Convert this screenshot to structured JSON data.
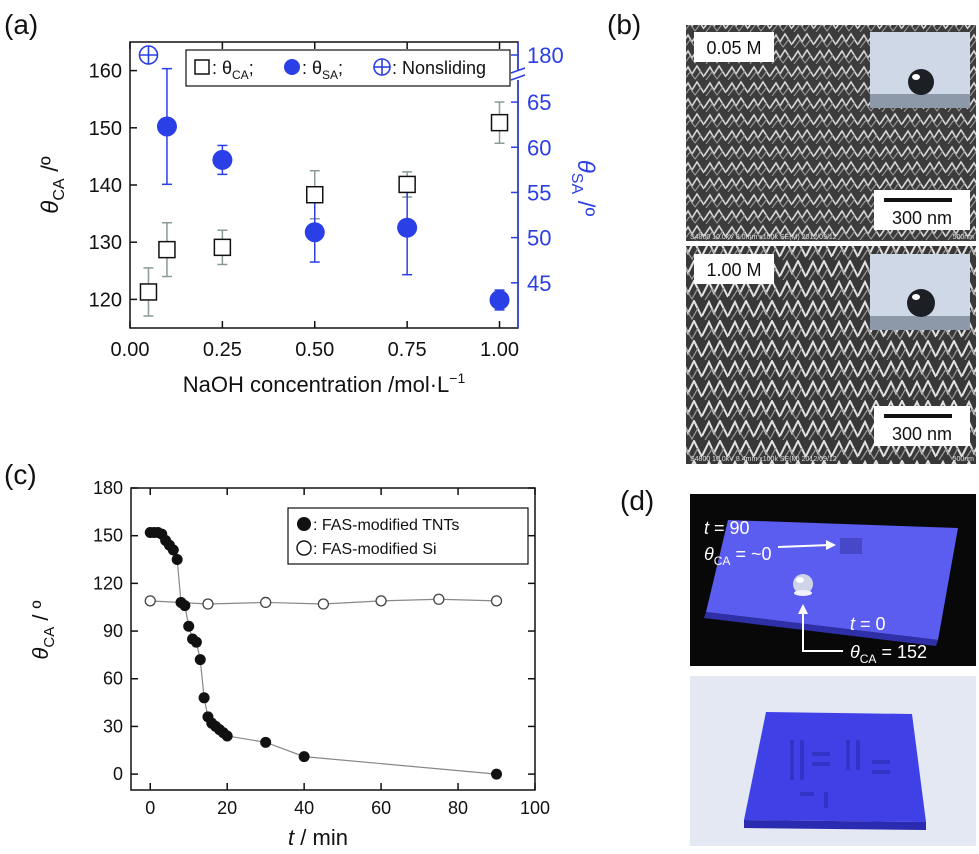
{
  "panels": {
    "a": "(a)",
    "b": "(b)",
    "c": "(c)",
    "d": "(d)"
  },
  "colors": {
    "blue": "#2b3fe6",
    "black": "#111111",
    "errorbar_gray": "#8a9a9a",
    "line_gray": "#888888",
    "sem_bg": "#3a3a3a",
    "photo_bg": "#080808",
    "substrate": "#5b5cf0",
    "photo2_bg": "#e4e8f2"
  },
  "sem": {
    "top_label": "0.05 M",
    "bottom_label": "1.00 M",
    "scalebar_text": "300 nm",
    "top_caption": "S4800 10.0kV 8.0mm x100k SE(M) 2012/09/12",
    "top_caption_right": "500nm",
    "bottom_caption": "S4800 10.0kV 8.4mm x100k SE(M) 2012/09/12",
    "bottom_caption_right": "500nm"
  },
  "photo_d": {
    "t90_prefix": "t",
    "t90_value": " = 90",
    "theta_left_prefix": "θ",
    "theta_left_sub": "CA",
    "theta_left_value": " = ~0",
    "t0_prefix": "t",
    "t0_value": " = 0",
    "theta_right_prefix": "θ",
    "theta_right_sub": "CA",
    "theta_right_value": " = 152"
  },
  "chart_data": [
    {
      "panel": "a",
      "type": "scatter",
      "xlabel": "NaOH concentration /mol·L",
      "xlabel_sup": "−1",
      "ylabel_left_main": "θ",
      "ylabel_left_sub": "CA",
      "ylabel_left_unit": " /º",
      "ylabel_right_main": "θ",
      "ylabel_right_sub": "SA",
      "ylabel_right_unit": " /º",
      "xlim": [
        0,
        1.05
      ],
      "xticks": [
        0.0,
        0.25,
        0.5,
        0.75,
        1.0
      ],
      "xtick_labels": [
        "0.00",
        "0.25",
        "0.50",
        "0.75",
        "1.00"
      ],
      "ylim_left": [
        115,
        165
      ],
      "yticks_left": [
        120,
        130,
        140,
        150,
        160
      ],
      "ylim_right_lower": [
        40,
        67
      ],
      "yticks_right": [
        45,
        50,
        55,
        60,
        65,
        180
      ],
      "right_axis_break": true,
      "legend": {
        "position": "top",
        "entries": [
          {
            "marker": "open-square",
            "prefix": ": θ",
            "sub": "CA",
            "suffix": ";"
          },
          {
            "marker": "filled-circle",
            "prefix": ": θ",
            "sub": "SA",
            "suffix": ";"
          },
          {
            "marker": "crossed-circle",
            "prefix": ": Nonsliding",
            "sub": "",
            "suffix": ""
          }
        ]
      },
      "series": [
        {
          "name": "θCA",
          "axis": "left",
          "marker": "open-square",
          "x": [
            0.05,
            0.1,
            0.25,
            0.5,
            0.75,
            1.0
          ],
          "y": [
            121.3,
            128.7,
            129.1,
            138.3,
            140.1,
            150.9
          ],
          "err": [
            4.2,
            4.7,
            3.0,
            4.2,
            2.2,
            3.6
          ]
        },
        {
          "name": "θSA",
          "axis": "right",
          "marker": "filled-circle",
          "x": [
            0.1,
            0.25,
            0.5,
            0.75,
            1.0
          ],
          "y": [
            62.3,
            58.6,
            50.6,
            51.1,
            43.1
          ],
          "err": [
            6.4,
            1.6,
            3.3,
            5.2,
            1.1
          ]
        },
        {
          "name": "Nonsliding",
          "axis": "right-break",
          "marker": "crossed-circle",
          "x": [
            0.05
          ],
          "y": [
            180
          ]
        }
      ]
    },
    {
      "panel": "c",
      "type": "line",
      "xlabel_main": "t",
      "xlabel_unit": " / min",
      "ylabel_main": "θ",
      "ylabel_sub": "CA",
      "ylabel_unit": " / º",
      "xlim": [
        -5,
        100
      ],
      "ylim": [
        -10,
        180
      ],
      "xticks": [
        0,
        20,
        40,
        60,
        80,
        100
      ],
      "yticks": [
        0,
        30,
        60,
        90,
        120,
        150,
        180
      ],
      "legend": {
        "position": "top-right",
        "entries": [
          "FAS-modified TNTs",
          "FAS-modified Si"
        ]
      },
      "series": [
        {
          "name": "FAS-modified TNTs",
          "marker": "filled-circle",
          "x": [
            0,
            1,
            2,
            3,
            4,
            5,
            6,
            7,
            8,
            9,
            10,
            11,
            12,
            13,
            14,
            15,
            16,
            17,
            18,
            19,
            20,
            30,
            40,
            90
          ],
          "y": [
            152,
            152,
            152,
            151,
            147,
            144,
            141,
            135,
            108,
            106,
            93,
            85,
            83,
            72,
            48,
            36,
            32,
            30,
            28,
            26,
            24,
            20,
            11,
            0
          ]
        },
        {
          "name": "FAS-modified Si",
          "marker": "open-circle",
          "x": [
            0,
            15,
            30,
            45,
            60,
            75,
            90
          ],
          "y": [
            109,
            107,
            108,
            107,
            109,
            110,
            109
          ]
        }
      ]
    }
  ]
}
